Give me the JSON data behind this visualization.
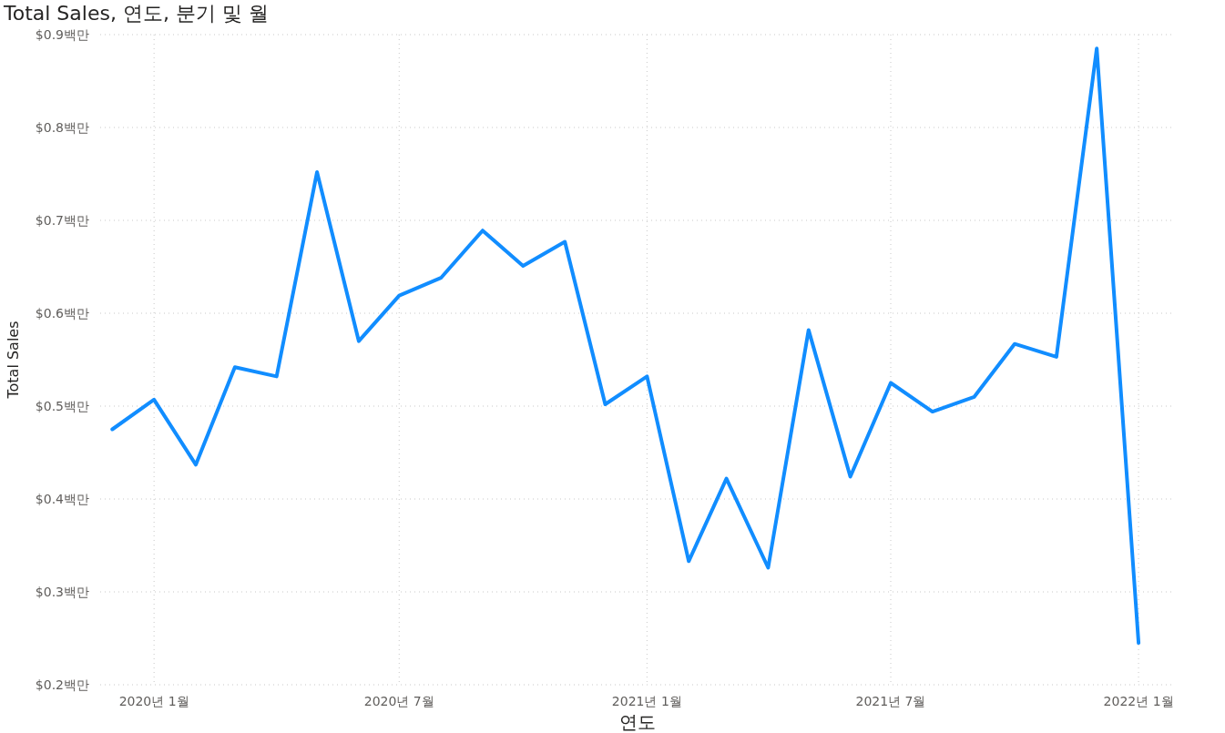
{
  "chart_data": {
    "type": "line",
    "title": "Total Sales, 연도, 분기 및 월",
    "xlabel": "연도",
    "ylabel": "Total Sales",
    "x": [
      "2019-12",
      "2020-01",
      "2020-02",
      "2020-03",
      "2020-04",
      "2020-05",
      "2020-06",
      "2020-07",
      "2020-08",
      "2020-09",
      "2020-10",
      "2020-11",
      "2020-12",
      "2021-01",
      "2021-02",
      "2021-03",
      "2021-04",
      "2021-05",
      "2021-06",
      "2021-07",
      "2021-08",
      "2021-09",
      "2021-10",
      "2021-11",
      "2021-12",
      "2022-01"
    ],
    "series": [
      {
        "color": "#118dff",
        "values": [
          0.475,
          0.507,
          0.437,
          0.542,
          0.532,
          0.752,
          0.57,
          0.619,
          0.638,
          0.689,
          0.651,
          0.677,
          0.502,
          0.532,
          0.333,
          0.422,
          0.326,
          0.582,
          0.424,
          0.525,
          0.494,
          0.51,
          0.567,
          0.553,
          0.885,
          0.245
        ]
      }
    ],
    "xlim": [
      "2019-11-22",
      "2022-01-28"
    ],
    "ylim": [
      0.2,
      0.9
    ],
    "xticks": [
      {
        "value": "2020-01",
        "label": "2020년 1월"
      },
      {
        "value": "2020-07",
        "label": "2020년 7월"
      },
      {
        "value": "2021-01",
        "label": "2021년 1월"
      },
      {
        "value": "2021-07",
        "label": "2021년 7월"
      },
      {
        "value": "2022-01",
        "label": "2022년 1월"
      }
    ],
    "yticks": [
      {
        "value": 0.2,
        "label": "$0.2백만"
      },
      {
        "value": 0.3,
        "label": "$0.3백만"
      },
      {
        "value": 0.4,
        "label": "$0.4백만"
      },
      {
        "value": 0.5,
        "label": "$0.5백만"
      },
      {
        "value": 0.6,
        "label": "$0.6백만"
      },
      {
        "value": 0.7,
        "label": "$0.7백만"
      },
      {
        "value": 0.8,
        "label": "$0.8백만"
      },
      {
        "value": 0.9,
        "label": "$0.9백만"
      }
    ],
    "grid": true,
    "line_style": "solid"
  }
}
